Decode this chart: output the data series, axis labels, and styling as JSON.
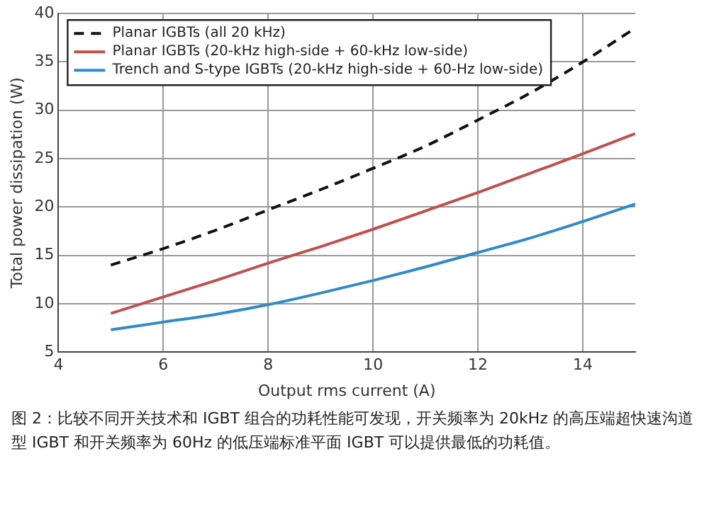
{
  "chart_data": {
    "type": "line",
    "xlabel": "Output rms current (A)",
    "ylabel": "Total power dissipation (W)",
    "x": [
      5,
      6,
      7,
      8,
      9,
      10,
      11,
      12,
      13,
      14,
      15
    ],
    "series": [
      {
        "name": "Planar IGBTs (all 20 kHz)",
        "color": "#111111",
        "line_style": "dashed",
        "values": [
          14,
          15.7,
          17.6,
          19.7,
          21.8,
          24,
          26.3,
          29,
          31.8,
          35,
          38.5
        ]
      },
      {
        "name": "Planar IGBTs (20-kHz high-side + 60-kHz low-side)",
        "color": "#c0504d",
        "line_style": "solid",
        "values": [
          9,
          10.7,
          12.4,
          14.2,
          15.9,
          17.7,
          19.6,
          21.5,
          23.5,
          25.5,
          27.6
        ]
      },
      {
        "name": "Trench and S-type IGBTs (20-kHz high-side + 60-Hz low-side)",
        "color": "#2e8bc9",
        "line_style": "solid",
        "values": [
          7.3,
          8.1,
          8.9,
          9.9,
          11.1,
          12.4,
          13.8,
          15.3,
          16.8,
          18.5,
          20.3
        ]
      }
    ],
    "xlim": [
      4,
      15
    ],
    "xticks": [
      4,
      6,
      8,
      10,
      12,
      14
    ],
    "ylim": [
      5,
      40
    ],
    "yticks": [
      5,
      10,
      15,
      20,
      25,
      30,
      35,
      40
    ],
    "grid": true,
    "legend": "top left",
    "marker": "none",
    "annotations": [
      "图 2：比较不同开关技术和 IGBT 组合的功耗性能可发现，开关频率为 20kHz 的高压端超快速沟道型 IGBT 和开关频率为 60Hz 的低压端标准平面 IGBT 可以提供最低的功耗值。"
    ]
  }
}
